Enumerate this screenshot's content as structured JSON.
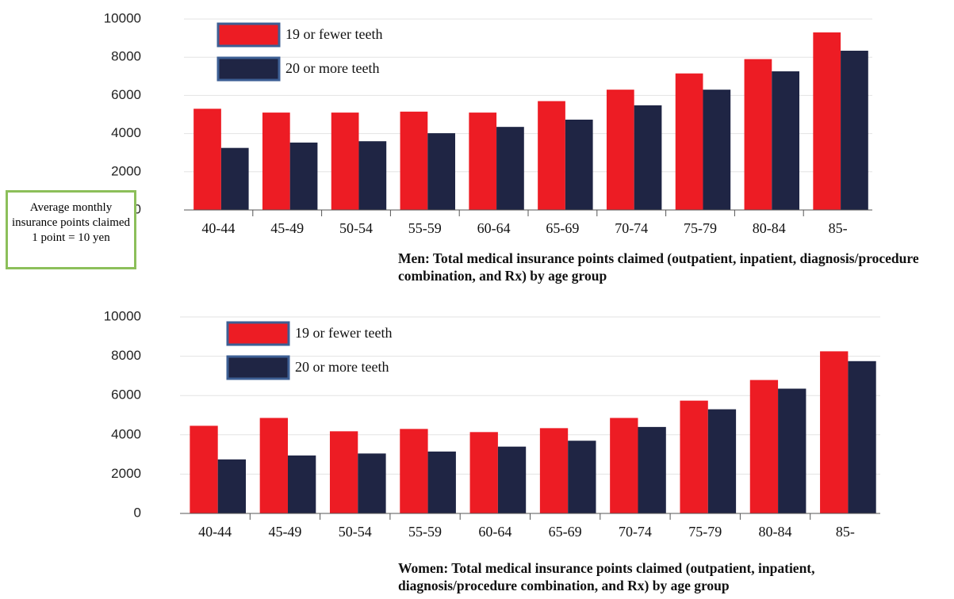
{
  "chart_data": [
    {
      "type": "bar",
      "ylabel": "Average monthly insurance points claimed",
      "annotation": "1 point = 10 yen",
      "xlabel": "Men: Total medical insurance points claimed (outpatient, inpatient, diagnosis/procedure combination, and Rx) by age group",
      "categories": [
        "40-44",
        "45-49",
        "50-54",
        "55-59",
        "60-64",
        "65-69",
        "70-74",
        "75-79",
        "80-84",
        "85-"
      ],
      "series": [
        {
          "name": "19 or fewer teeth",
          "color": "#ed1c24",
          "values": [
            5300,
            5100,
            5100,
            5150,
            5100,
            5700,
            6300,
            7150,
            7900,
            9300
          ]
        },
        {
          "name": "20 or more teeth",
          "color": "#1f2544",
          "values": [
            3250,
            3530,
            3600,
            4020,
            4350,
            4730,
            5480,
            6300,
            7260,
            8340
          ]
        }
      ],
      "ylim": [
        0,
        10000
      ],
      "yticks": [
        0,
        2000,
        4000,
        6000,
        8000,
        10000
      ],
      "grid": true,
      "legend": "upper left"
    },
    {
      "type": "bar",
      "xlabel": "Women: Total medical insurance points claimed (outpatient, inpatient, diagnosis/procedure combination, and Rx) by age group",
      "categories": [
        "40-44",
        "45-49",
        "50-54",
        "55-59",
        "60-64",
        "65-69",
        "70-74",
        "75-79",
        "80-84",
        "85-"
      ],
      "series": [
        {
          "name": "19 or fewer teeth",
          "color": "#ed1c24",
          "values": [
            4460,
            4860,
            4180,
            4300,
            4140,
            4340,
            4860,
            5740,
            6790,
            8250
          ]
        },
        {
          "name": "20 or more teeth",
          "color": "#1f2544",
          "values": [
            2750,
            2950,
            3050,
            3150,
            3400,
            3700,
            4400,
            5300,
            6350,
            7750
          ]
        }
      ],
      "ylim": [
        0,
        10000
      ],
      "yticks": [
        0,
        2000,
        4000,
        6000,
        8000,
        10000
      ],
      "grid": true,
      "legend": "upper left"
    }
  ]
}
